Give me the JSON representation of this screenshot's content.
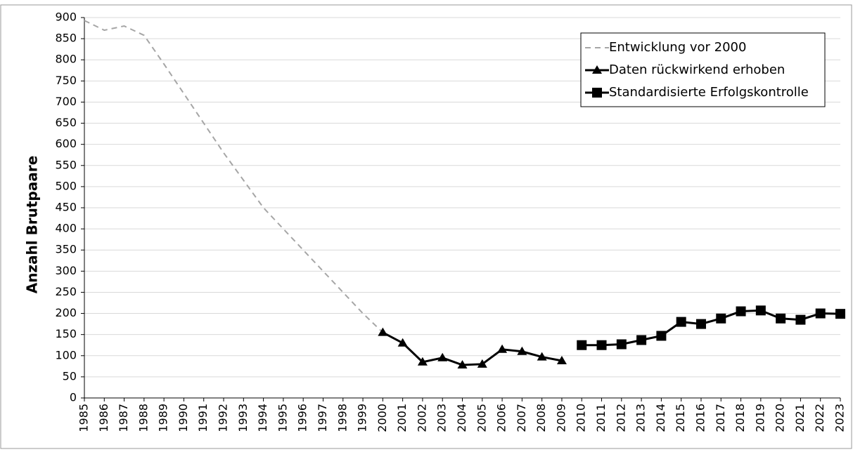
{
  "chart_data": {
    "type": "line",
    "y_label": "Anzahl Brutpaare",
    "x": [
      1985,
      1986,
      1987,
      1988,
      1989,
      1990,
      1991,
      1992,
      1993,
      1994,
      1995,
      1996,
      1997,
      1998,
      1999,
      2000,
      2001,
      2002,
      2003,
      2004,
      2005,
      2006,
      2007,
      2008,
      2009,
      2010,
      2011,
      2012,
      2013,
      2014,
      2015,
      2016,
      2017,
      2018,
      2019,
      2020,
      2021,
      2022,
      2023
    ],
    "xlim": [
      1985,
      2023
    ],
    "xticks": [
      1985,
      1986,
      1987,
      1988,
      1989,
      1990,
      1991,
      1992,
      1993,
      1994,
      1995,
      1996,
      1997,
      1998,
      1999,
      2000,
      2001,
      2002,
      2003,
      2004,
      2005,
      2006,
      2007,
      2008,
      2009,
      2010,
      2011,
      2012,
      2013,
      2014,
      2015,
      2016,
      2017,
      2018,
      2019,
      2020,
      2021,
      2022,
      2023
    ],
    "ylim": [
      0,
      900
    ],
    "yticks": [
      0,
      50,
      100,
      150,
      200,
      250,
      300,
      350,
      400,
      450,
      500,
      550,
      600,
      650,
      700,
      750,
      800,
      850,
      900
    ],
    "grid": true,
    "legend": "top-right",
    "series": [
      {
        "name": "Entwicklung vor 2000",
        "color": "#a6a6a6",
        "style": "dashed",
        "marker": "none",
        "values": [
          893,
          870,
          880,
          858,
          790,
          720,
          650,
          580,
          515,
          450,
          400,
          350,
          300,
          250,
          200,
          155,
          null,
          null,
          null,
          null,
          null,
          null,
          null,
          null,
          null,
          null,
          null,
          null,
          null,
          null,
          null,
          null,
          null,
          null,
          null,
          null,
          null,
          null,
          null
        ]
      },
      {
        "name": "Daten rückwirkend erhoben",
        "color": "#000000",
        "style": "solid",
        "marker": "triangle",
        "values": [
          null,
          null,
          null,
          null,
          null,
          null,
          null,
          null,
          null,
          null,
          null,
          null,
          null,
          null,
          null,
          155,
          130,
          85,
          95,
          78,
          80,
          115,
          110,
          97,
          88,
          null,
          null,
          null,
          null,
          null,
          null,
          null,
          null,
          null,
          null,
          null,
          null,
          null,
          null
        ]
      },
      {
        "name": "Standardisierte Erfolgskontrolle",
        "color": "#000000",
        "style": "solid",
        "marker": "square",
        "values": [
          null,
          null,
          null,
          null,
          null,
          null,
          null,
          null,
          null,
          null,
          null,
          null,
          null,
          null,
          null,
          null,
          null,
          null,
          null,
          null,
          null,
          null,
          null,
          null,
          null,
          125,
          125,
          127,
          137,
          147,
          180,
          175,
          188,
          205,
          207,
          188,
          185,
          200,
          199
        ]
      }
    ]
  }
}
